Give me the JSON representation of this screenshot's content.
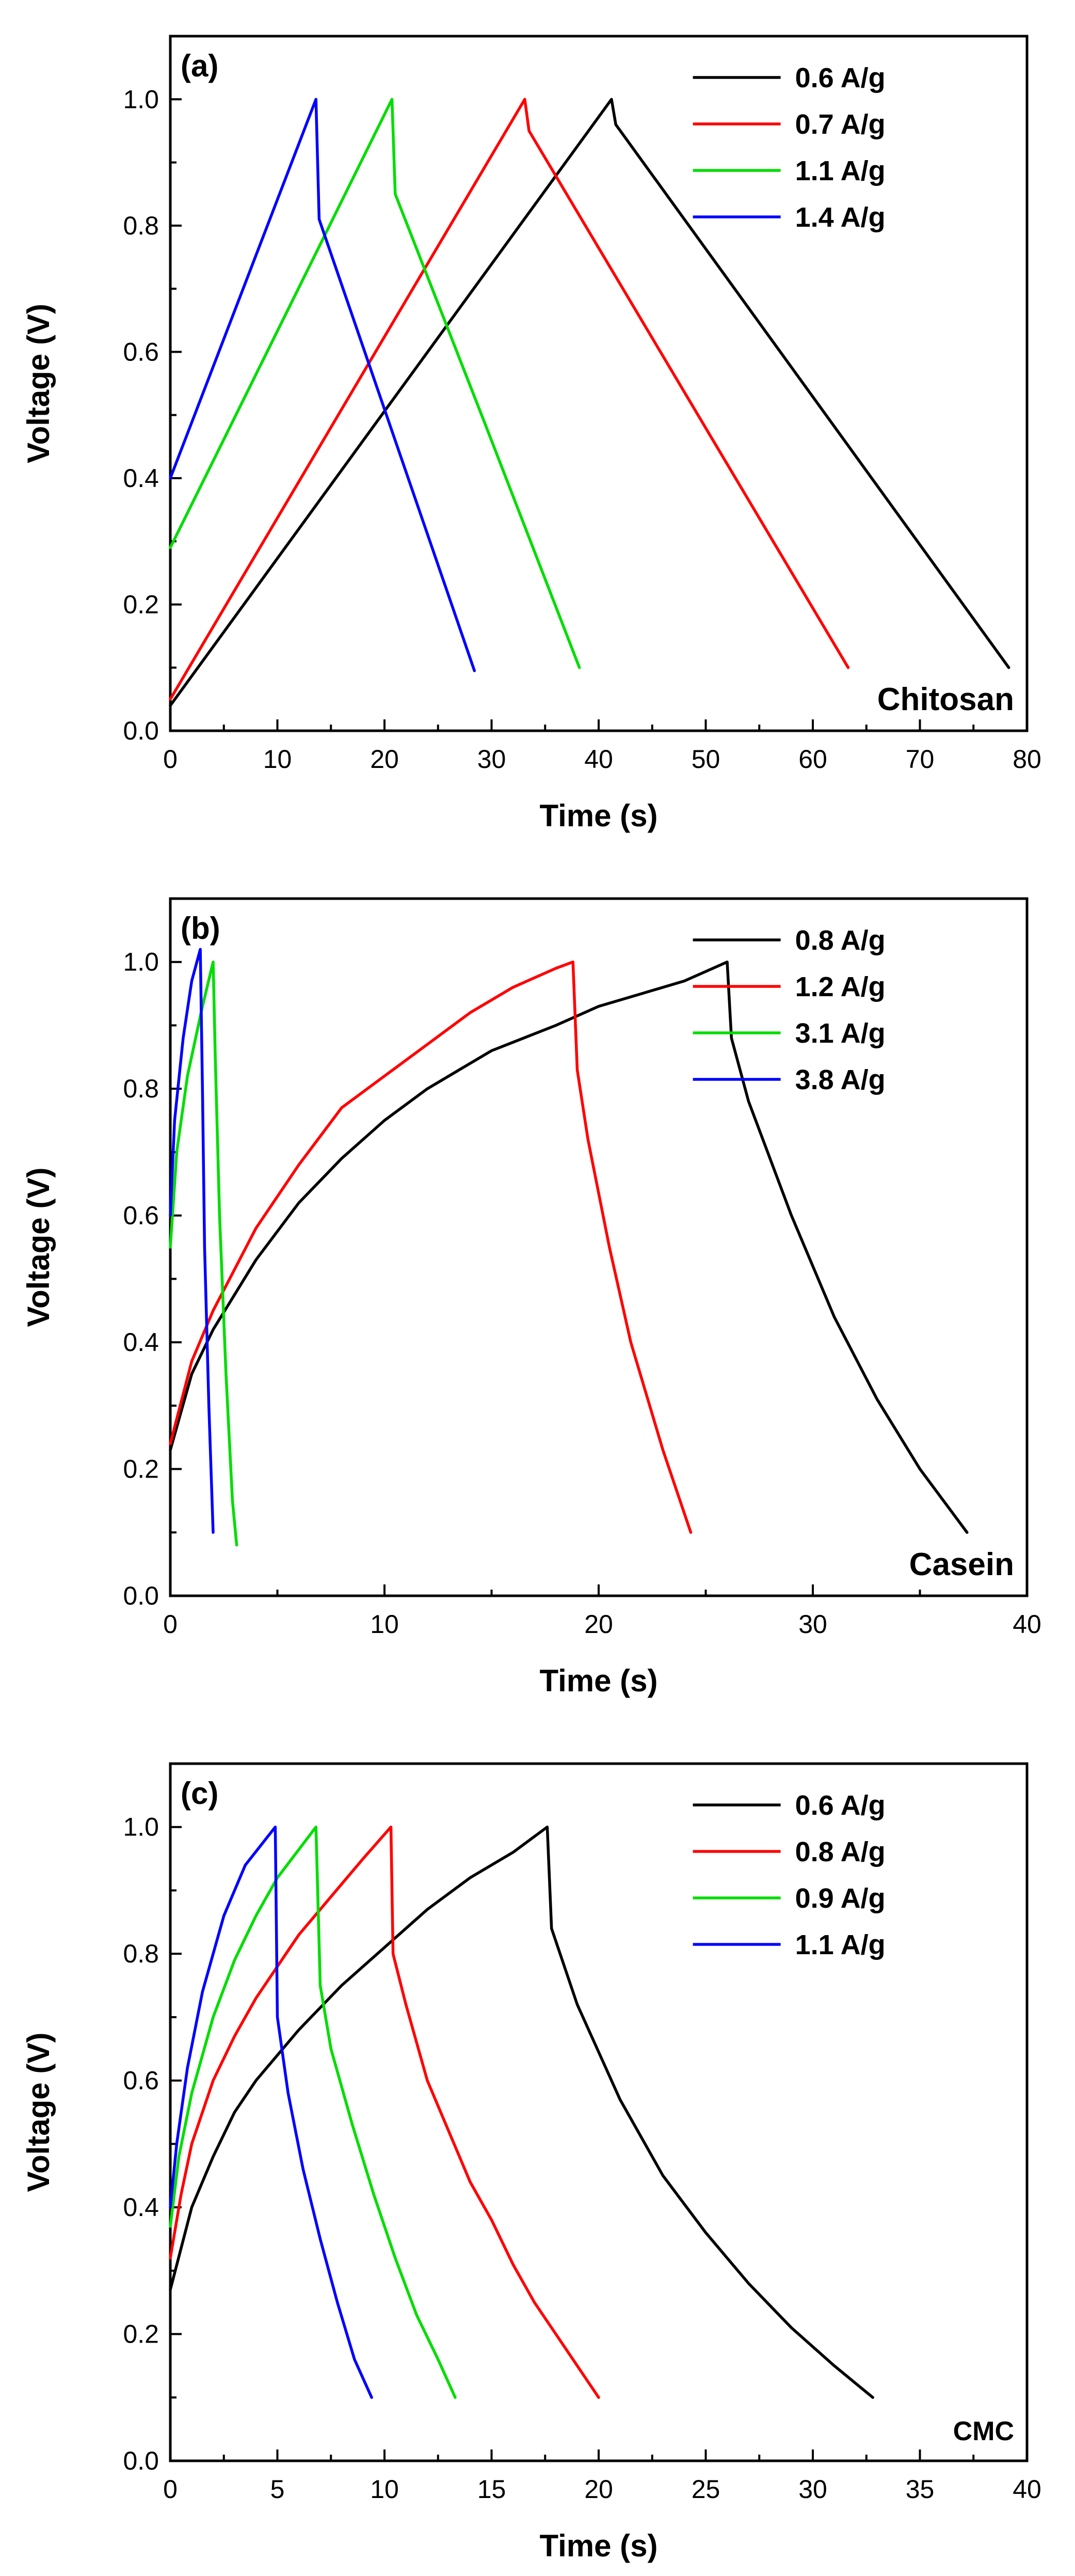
{
  "chart_data": [
    {
      "type": "line",
      "panel_label": "(a)",
      "material": "Chitosan",
      "xlabel": "Time (s)",
      "ylabel": "Voltage (V)",
      "xlim": [
        0,
        80
      ],
      "ylim": [
        0,
        1.1
      ],
      "xticks": [
        0,
        10,
        20,
        30,
        40,
        50,
        60,
        70,
        80
      ],
      "yticks": [
        0.0,
        0.2,
        0.4,
        0.6,
        0.8,
        1.0
      ],
      "legend_position": "top-right",
      "series": [
        {
          "name": "0.6 A/g",
          "color": "#000000",
          "points": [
            [
              0,
              0.04
            ],
            [
              41.2,
              1.0
            ],
            [
              41.6,
              0.96
            ],
            [
              78.3,
              0.1
            ]
          ]
        },
        {
          "name": "0.7 A/g",
          "color": "#ff0000",
          "points": [
            [
              0,
              0.05
            ],
            [
              33.1,
              1.0
            ],
            [
              33.5,
              0.95
            ],
            [
              63.3,
              0.1
            ]
          ]
        },
        {
          "name": "1.1 A/g",
          "color": "#00dd00",
          "points": [
            [
              0,
              0.29
            ],
            [
              20.7,
              1.0
            ],
            [
              21.0,
              0.85
            ],
            [
              29.3,
              0.49
            ],
            [
              38.2,
              0.1
            ]
          ]
        },
        {
          "name": "1.4 A/g",
          "color": "#0000ff",
          "points": [
            [
              0,
              0.4
            ],
            [
              13.6,
              1.0
            ],
            [
              13.9,
              0.81
            ],
            [
              28.4,
              0.095
            ]
          ]
        }
      ]
    },
    {
      "type": "line",
      "panel_label": "(b)",
      "material": "Casein",
      "xlabel": "Time (s)",
      "ylabel": "Voltage (V)",
      "xlim": [
        0,
        40
      ],
      "ylim": [
        0,
        1.1
      ],
      "xticks": [
        0,
        10,
        20,
        30,
        40
      ],
      "yticks": [
        0.0,
        0.2,
        0.4,
        0.6,
        0.8,
        1.0
      ],
      "legend_position": "top-right",
      "series": [
        {
          "name": "0.8 A/g",
          "color": "#000000",
          "points": [
            [
              0,
              0.23
            ],
            [
              1,
              0.35
            ],
            [
              2,
              0.42
            ],
            [
              4,
              0.53
            ],
            [
              6,
              0.62
            ],
            [
              8,
              0.69
            ],
            [
              10,
              0.75
            ],
            [
              12,
              0.8
            ],
            [
              15,
              0.86
            ],
            [
              18,
              0.9
            ],
            [
              20,
              0.93
            ],
            [
              22,
              0.95
            ],
            [
              24,
              0.97
            ],
            [
              26,
              1.0
            ],
            [
              26.2,
              0.88
            ],
            [
              27,
              0.78
            ],
            [
              29,
              0.6
            ],
            [
              31,
              0.44
            ],
            [
              33,
              0.31
            ],
            [
              35,
              0.2
            ],
            [
              37.2,
              0.1
            ]
          ]
        },
        {
          "name": "1.2 A/g",
          "color": "#ff0000",
          "points": [
            [
              0,
              0.24
            ],
            [
              1,
              0.37
            ],
            [
              2,
              0.45
            ],
            [
              4,
              0.58
            ],
            [
              6,
              0.68
            ],
            [
              8,
              0.77
            ],
            [
              10,
              0.82
            ],
            [
              12,
              0.87
            ],
            [
              14,
              0.92
            ],
            [
              16,
              0.96
            ],
            [
              18,
              0.99
            ],
            [
              18.8,
              1.0
            ],
            [
              19,
              0.83
            ],
            [
              19.5,
              0.72
            ],
            [
              20.5,
              0.55
            ],
            [
              21.5,
              0.4
            ],
            [
              23,
              0.23
            ],
            [
              24.3,
              0.1
            ]
          ]
        },
        {
          "name": "3.1 A/g",
          "color": "#00dd00",
          "points": [
            [
              0,
              0.55
            ],
            [
              0.3,
              0.7
            ],
            [
              0.8,
              0.82
            ],
            [
              1.5,
              0.93
            ],
            [
              2.0,
              1.0
            ],
            [
              2.1,
              0.85
            ],
            [
              2.3,
              0.6
            ],
            [
              2.6,
              0.35
            ],
            [
              2.9,
              0.15
            ],
            [
              3.1,
              0.08
            ]
          ]
        },
        {
          "name": "3.8 A/g",
          "color": "#0000ff",
          "points": [
            [
              0,
              0.6
            ],
            [
              0.2,
              0.75
            ],
            [
              0.6,
              0.88
            ],
            [
              1.0,
              0.97
            ],
            [
              1.4,
              1.02
            ],
            [
              1.5,
              0.8
            ],
            [
              1.6,
              0.55
            ],
            [
              1.8,
              0.3
            ],
            [
              2.0,
              0.1
            ]
          ]
        }
      ]
    },
    {
      "type": "line",
      "panel_label": "(c)",
      "material": "CMC",
      "xlabel": "Time (s)",
      "ylabel": "Voltage (V)",
      "xlim": [
        0,
        40
      ],
      "ylim": [
        0,
        1.1
      ],
      "xticks": [
        0,
        5,
        10,
        15,
        20,
        25,
        30,
        35,
        40
      ],
      "yticks": [
        0.0,
        0.2,
        0.4,
        0.6,
        0.8,
        1.0
      ],
      "legend_position": "top-right",
      "series": [
        {
          "name": "0.6 A/g",
          "color": "#000000",
          "points": [
            [
              0,
              0.27
            ],
            [
              1,
              0.4
            ],
            [
              2,
              0.48
            ],
            [
              3,
              0.55
            ],
            [
              4,
              0.6
            ],
            [
              6,
              0.68
            ],
            [
              8,
              0.75
            ],
            [
              10,
              0.81
            ],
            [
              12,
              0.87
            ],
            [
              14,
              0.92
            ],
            [
              16,
              0.96
            ],
            [
              17.6,
              1.0
            ],
            [
              17.8,
              0.84
            ],
            [
              19,
              0.72
            ],
            [
              21,
              0.57
            ],
            [
              23,
              0.45
            ],
            [
              25,
              0.36
            ],
            [
              27,
              0.28
            ],
            [
              29,
              0.21
            ],
            [
              31,
              0.15
            ],
            [
              32.8,
              0.1
            ]
          ]
        },
        {
          "name": "0.8 A/g",
          "color": "#ff0000",
          "points": [
            [
              0,
              0.32
            ],
            [
              0.5,
              0.42
            ],
            [
              1,
              0.5
            ],
            [
              2,
              0.6
            ],
            [
              3,
              0.67
            ],
            [
              4,
              0.73
            ],
            [
              5,
              0.78
            ],
            [
              6,
              0.83
            ],
            [
              7,
              0.87
            ],
            [
              8,
              0.91
            ],
            [
              9,
              0.95
            ],
            [
              10.3,
              1.0
            ],
            [
              10.4,
              0.8
            ],
            [
              11,
              0.72
            ],
            [
              12,
              0.6
            ],
            [
              13,
              0.52
            ],
            [
              14,
              0.44
            ],
            [
              15,
              0.38
            ],
            [
              16,
              0.31
            ],
            [
              17,
              0.25
            ],
            [
              18,
              0.2
            ],
            [
              19,
              0.15
            ],
            [
              20,
              0.1
            ]
          ]
        },
        {
          "name": "0.9 A/g",
          "color": "#00dd00",
          "points": [
            [
              0,
              0.37
            ],
            [
              0.4,
              0.48
            ],
            [
              1,
              0.58
            ],
            [
              2,
              0.7
            ],
            [
              3,
              0.79
            ],
            [
              4,
              0.86
            ],
            [
              5,
              0.92
            ],
            [
              6.8,
              1.0
            ],
            [
              7.0,
              0.75
            ],
            [
              7.5,
              0.65
            ],
            [
              8.5,
              0.53
            ],
            [
              9.5,
              0.42
            ],
            [
              10.5,
              0.32
            ],
            [
              11.5,
              0.23
            ],
            [
              12.5,
              0.16
            ],
            [
              13.3,
              0.1
            ]
          ]
        },
        {
          "name": "1.1 A/g",
          "color": "#0000ff",
          "points": [
            [
              0,
              0.4
            ],
            [
              0.3,
              0.5
            ],
            [
              0.8,
              0.62
            ],
            [
              1.5,
              0.74
            ],
            [
              2.5,
              0.86
            ],
            [
              3.5,
              0.94
            ],
            [
              4.9,
              1.0
            ],
            [
              5.0,
              0.7
            ],
            [
              5.5,
              0.58
            ],
            [
              6.2,
              0.46
            ],
            [
              7,
              0.35
            ],
            [
              7.8,
              0.25
            ],
            [
              8.6,
              0.16
            ],
            [
              9.4,
              0.1
            ]
          ]
        }
      ]
    }
  ]
}
